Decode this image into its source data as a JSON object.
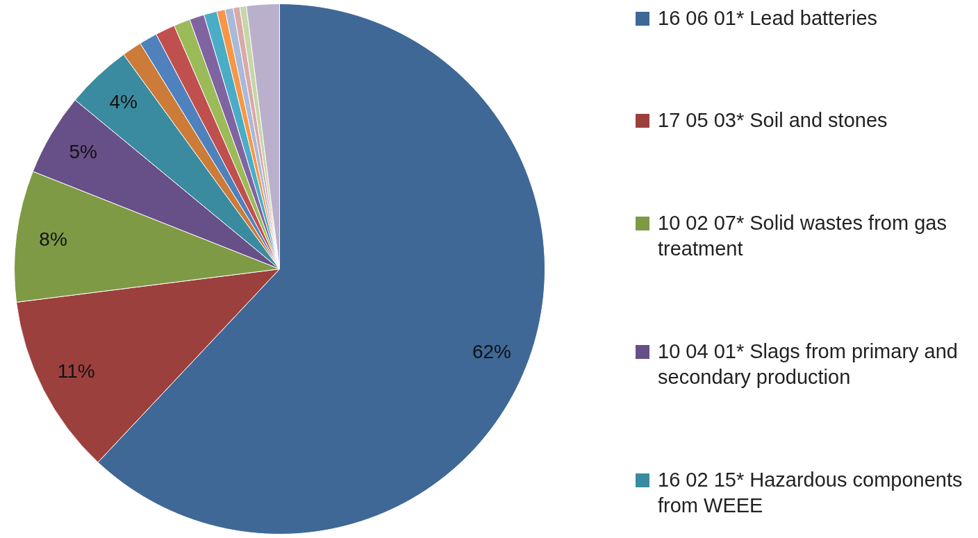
{
  "chart_data": {
    "type": "pie",
    "categories": [
      "16 06 01* Lead batteries",
      "17 05 03* Soil and stones",
      "10 02 07* Solid wastes from gas treatment",
      "10 04 01* Slags from primary and secondary production",
      "16 02 15* Hazardous components from WEEE",
      null,
      null,
      null,
      null,
      null,
      null,
      null,
      null,
      null,
      null,
      null
    ],
    "values": [
      62,
      11,
      8,
      5,
      4,
      1.2,
      1.1,
      1.2,
      1.0,
      0.9,
      0.8,
      0.5,
      0.5,
      0.4,
      0.4,
      2.0
    ],
    "colors": [
      "#3f6897",
      "#9c403e",
      "#7e9a44",
      "#674f87",
      "#3b8ba0",
      "#cc7b38",
      "#4f81bd",
      "#c0504d",
      "#9bbb59",
      "#8064a2",
      "#4bacc6",
      "#f79646",
      "#a9b9d9",
      "#d9a9a8",
      "#c5d6a8",
      "#bbb0cc"
    ],
    "value_labels": [
      "62%",
      "11%",
      "8%",
      "5%",
      "4%",
      null,
      null,
      null,
      null,
      null,
      null,
      null,
      null,
      null,
      null,
      null
    ],
    "legend": "right"
  }
}
